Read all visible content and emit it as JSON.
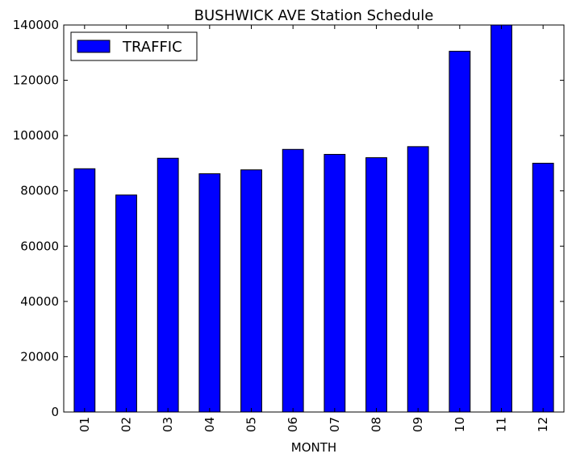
{
  "chart_data": {
    "type": "bar",
    "title": "BUSHWICK AVE Station Schedule",
    "xlabel": "MONTH",
    "ylabel": "",
    "ylim": [
      0,
      140000
    ],
    "yticks": [
      0,
      20000,
      40000,
      60000,
      80000,
      100000,
      120000,
      140000
    ],
    "categories": [
      "01",
      "02",
      "03",
      "04",
      "05",
      "06",
      "07",
      "08",
      "09",
      "10",
      "11",
      "12"
    ],
    "series": [
      {
        "name": "TRAFFIC",
        "color": "#0000ff",
        "values": [
          88000,
          78500,
          91800,
          86200,
          87600,
          95000,
          93200,
          92000,
          96000,
          130500,
          140000,
          90000
        ]
      }
    ],
    "legend_position": "upper-left",
    "grid": false
  }
}
